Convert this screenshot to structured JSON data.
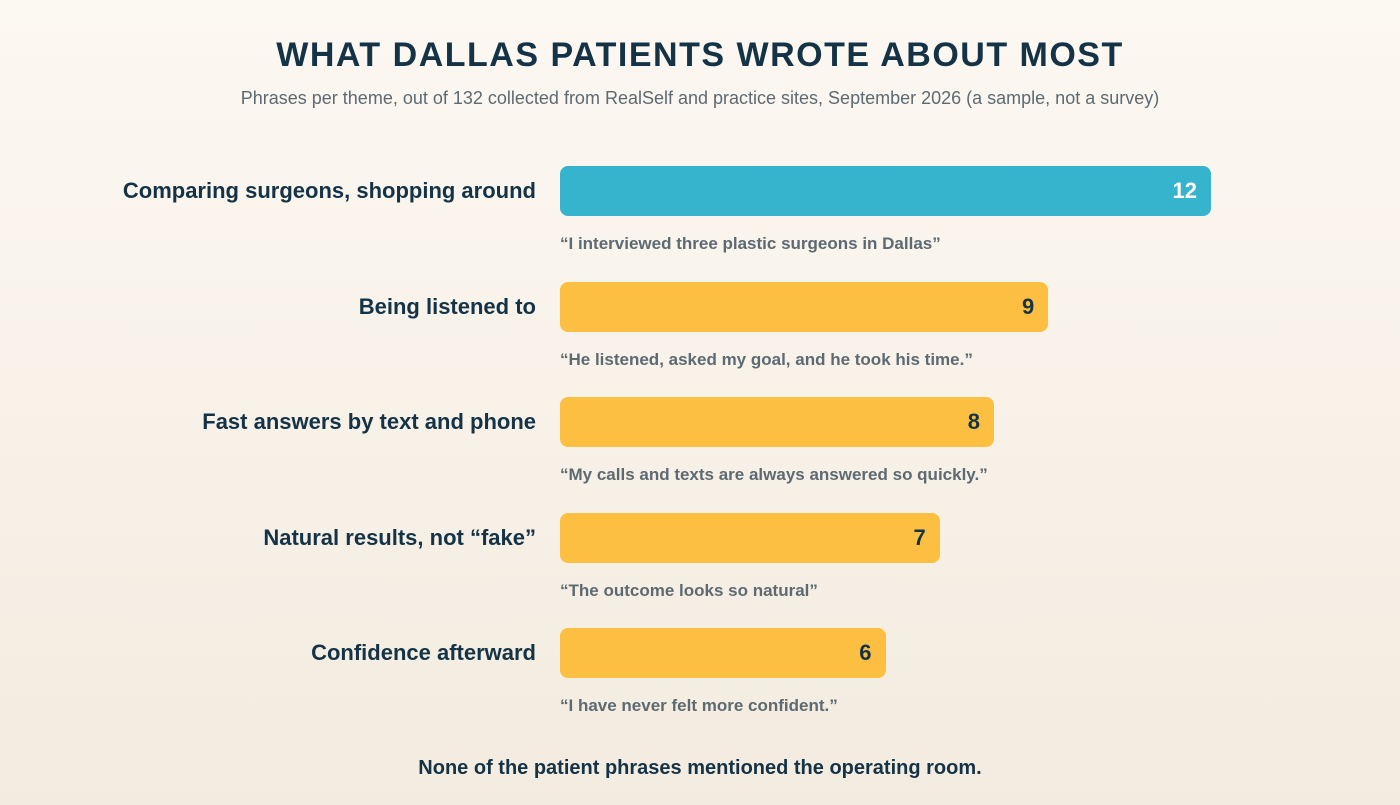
{
  "header": {
    "title": "WHAT DALLAS PATIENTS WROTE ABOUT MOST",
    "subtitle": "Phrases per theme, out of 132 collected from RealSelf and practice sites, September 2026 (a sample, not a survey)"
  },
  "chart_data": {
    "type": "bar",
    "orientation": "horizontal",
    "categories": [
      "Comparing surgeons, shopping around",
      "Being listened to",
      "Fast answers by text and phone",
      "Natural results, not “fake”",
      "Confidence afterward"
    ],
    "values": [
      12,
      9,
      8,
      7,
      6
    ],
    "quotes": [
      "“I interviewed three plastic surgeons in Dallas”",
      "“He listened, asked my goal, and he took his time.”",
      "“My calls and texts are always answered so quickly.”",
      "“The outcome looks so natural”",
      "“I have never felt more confident.”"
    ],
    "highlight_index": 0,
    "colors": {
      "highlight": "#36b3cd",
      "default": "#fdbf41",
      "highlight_text": "#ffffff",
      "default_text": "#143346"
    },
    "title": "WHAT DALLAS PATIENTS WROTE ABOUT MOST",
    "xlabel": "",
    "ylabel": "",
    "xlim": [
      0,
      12
    ]
  },
  "footnote": "None of the patient phrases mentioned the operating room."
}
